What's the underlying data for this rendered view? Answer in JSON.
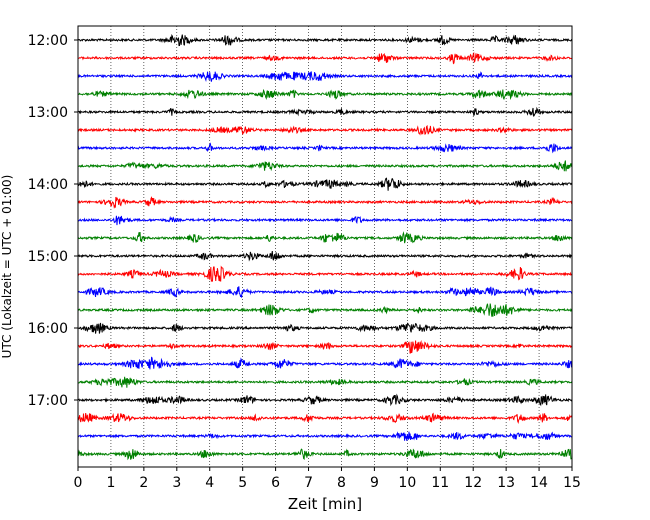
{
  "chart_data": {
    "type": "line",
    "title": "",
    "xlabel": "Zeit  [min]",
    "ylabel": "UTC (Lokalzeit = UTC + 01:00)",
    "xlim": [
      0,
      15
    ],
    "x_ticks": [
      "0",
      "1",
      "2",
      "3",
      "4",
      "5",
      "6",
      "7",
      "8",
      "9",
      "10",
      "11",
      "12",
      "13",
      "14",
      "15"
    ],
    "y_ticks": [
      "12:00",
      "13:00",
      "14:00",
      "15:00",
      "16:00",
      "17:00"
    ],
    "trace_start": "12:00",
    "trace_interval_min": 15,
    "trace_count": 24,
    "trace_colors": [
      "#000000",
      "#ff0000",
      "#0000ff",
      "#008000"
    ],
    "grid": "vertical dotted",
    "legend": "none"
  }
}
